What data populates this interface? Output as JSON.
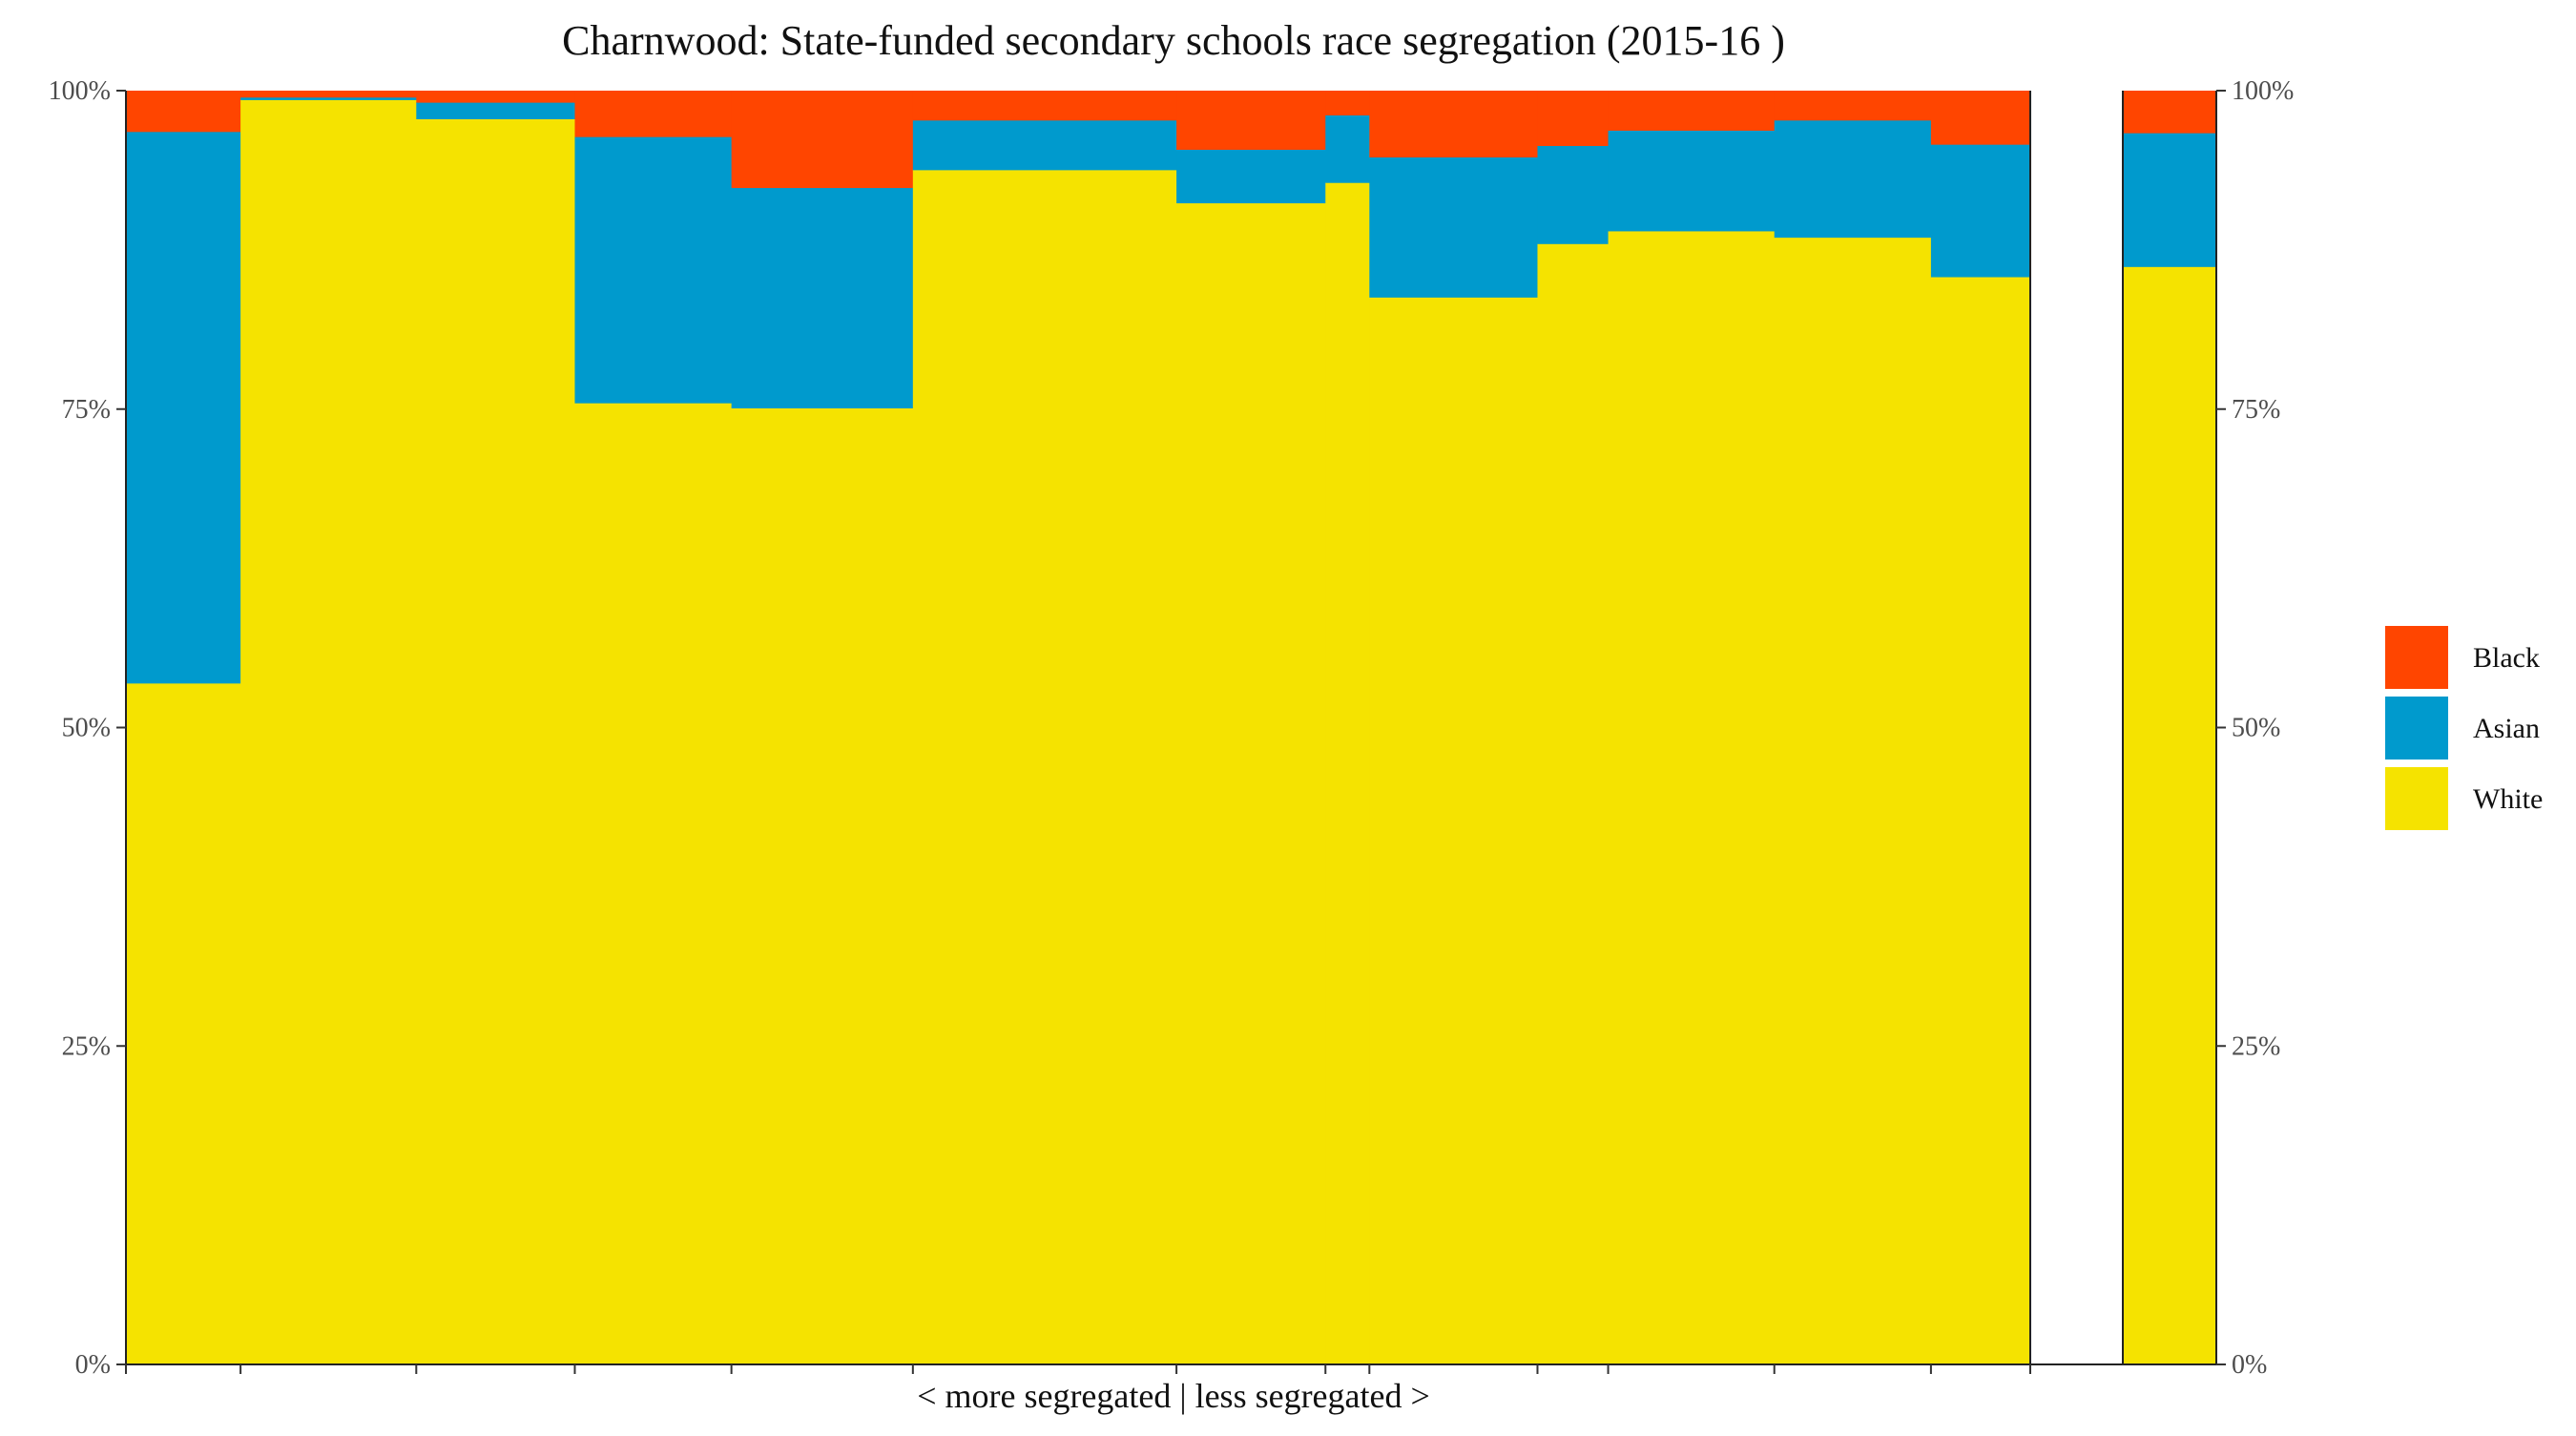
{
  "chart_data": {
    "type": "bar",
    "subtype": "stacked-percent-variable-width",
    "title": "Charnwood: State-funded secondary schools race segregation (2015-16 )",
    "xlabel": "< more segregated | less segregated >",
    "ylabel": "",
    "ylim": [
      0,
      100
    ],
    "y_tick_labels": [
      "0%",
      "25%",
      "50%",
      "75%",
      "100%"
    ],
    "y_ticks": [
      0,
      25,
      50,
      75,
      100
    ],
    "y_axis_sides": [
      "left",
      "right"
    ],
    "grid": false,
    "legend_position": "right",
    "stack_order_bottom_to_top": [
      "White",
      "Asian",
      "Black"
    ],
    "series": [
      {
        "name": "Black",
        "color": "#FF4500"
      },
      {
        "name": "Asian",
        "color": "#009ACD"
      },
      {
        "name": "White",
        "color": "#F5E300"
      }
    ],
    "schools": [
      {
        "relative_width": 6.0,
        "White": 53.5,
        "Asian": 43.3,
        "Black": 3.2
      },
      {
        "relative_width": 9.2,
        "White": 99.3,
        "Asian": 0.2,
        "Black": 0.5
      },
      {
        "relative_width": 8.3,
        "White": 97.8,
        "Asian": 1.3,
        "Black": 0.9
      },
      {
        "relative_width": 8.2,
        "White": 75.5,
        "Asian": 20.9,
        "Black": 3.6
      },
      {
        "relative_width": 9.5,
        "White": 75.1,
        "Asian": 17.3,
        "Black": 7.6
      },
      {
        "relative_width": 13.8,
        "White": 93.8,
        "Asian": 3.9,
        "Black": 2.3
      },
      {
        "relative_width": 7.8,
        "White": 91.2,
        "Asian": 4.2,
        "Black": 4.6
      },
      {
        "relative_width": 2.3,
        "White": 92.8,
        "Asian": 5.3,
        "Black": 1.9
      },
      {
        "relative_width": 8.8,
        "White": 83.8,
        "Asian": 11.0,
        "Black": 5.2
      },
      {
        "relative_width": 3.7,
        "White": 88.0,
        "Asian": 7.7,
        "Black": 4.3
      },
      {
        "relative_width": 8.7,
        "White": 89.0,
        "Asian": 7.9,
        "Black": 3.1
      },
      {
        "relative_width": 8.2,
        "White": 88.5,
        "Asian": 9.2,
        "Black": 2.3
      },
      {
        "relative_width": 5.2,
        "White": 85.4,
        "Asian": 10.4,
        "Black": 4.2
      }
    ],
    "total": {
      "White": 86.2,
      "Asian": 10.5,
      "Black": 3.3
    }
  }
}
